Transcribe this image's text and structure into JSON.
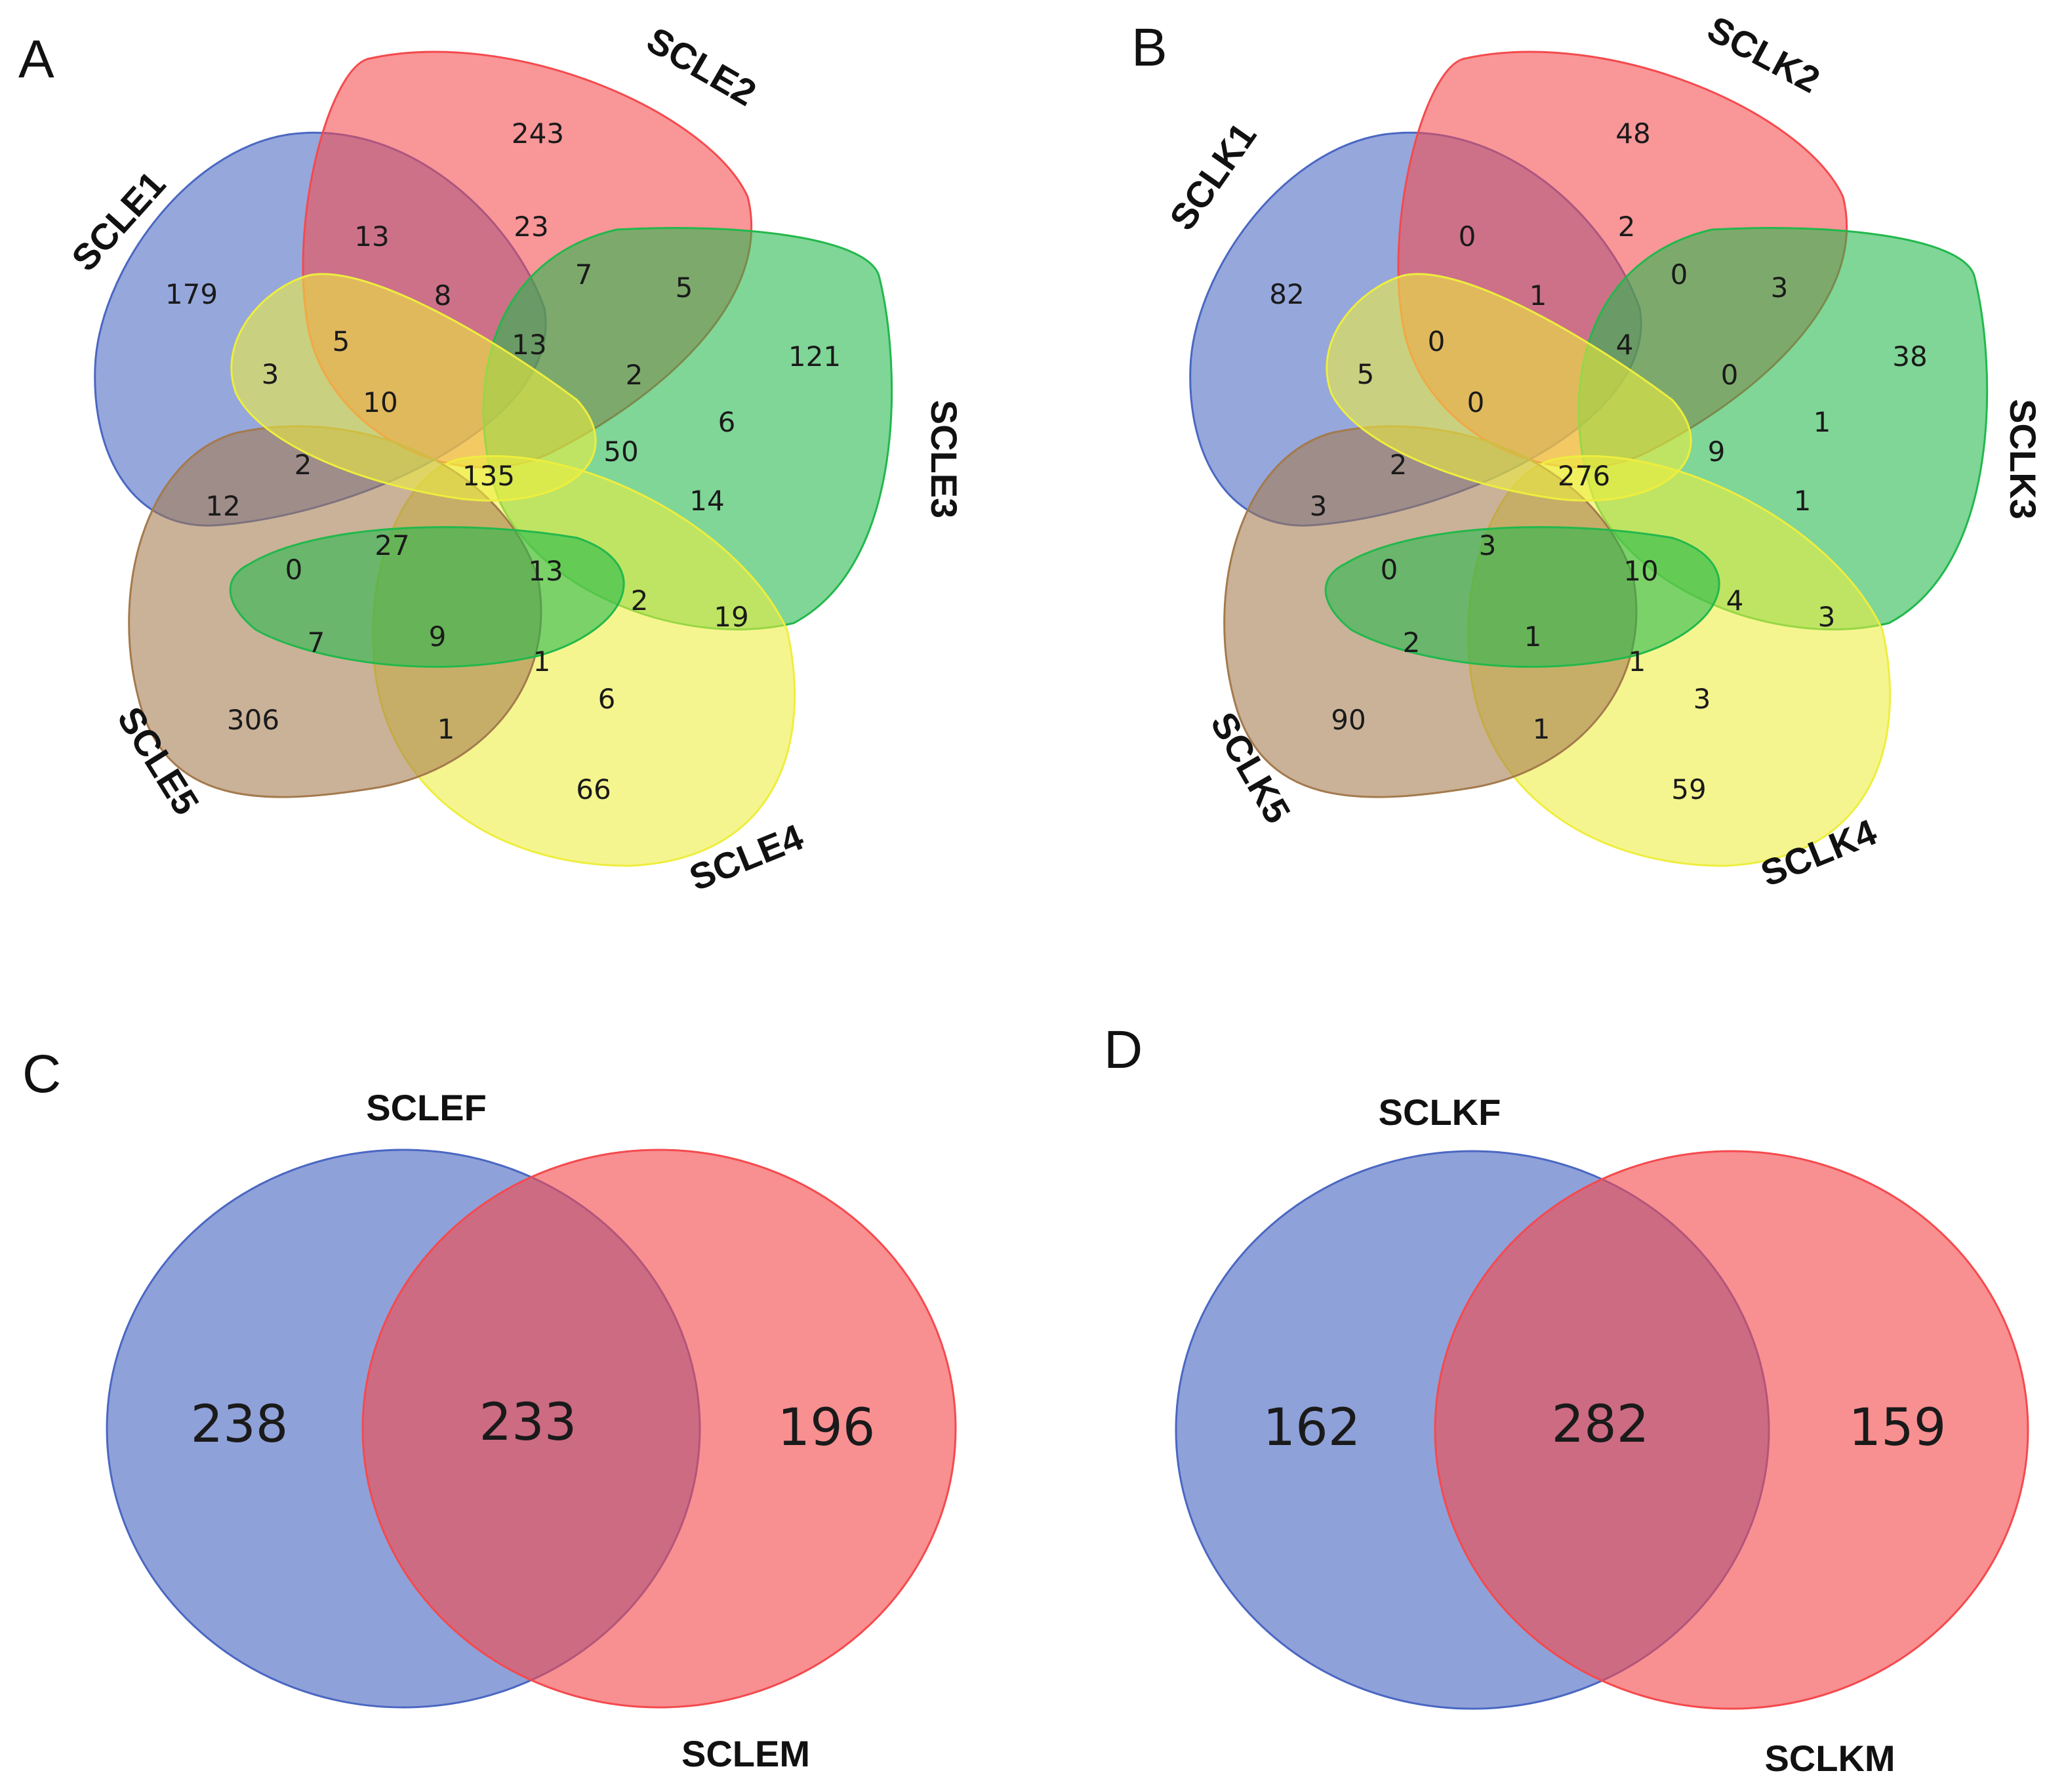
{
  "panels": {
    "A": {
      "letter": "A",
      "sets": [
        {
          "name": "SCLE1",
          "color": "#4a67c2"
        },
        {
          "name": "SCLE2",
          "color": "#f44a4d"
        },
        {
          "name": "SCLE3",
          "color": "#22b84c"
        },
        {
          "name": "SCLE4",
          "color": "#eeee3e"
        },
        {
          "name": "SCLE5",
          "color": "#a47a4d"
        }
      ],
      "counts": [
        "179",
        "243",
        "121",
        "66",
        "306",
        "13",
        "23",
        "8",
        "7",
        "5",
        "3",
        "5",
        "10",
        "13",
        "2",
        "6",
        "2",
        "135",
        "50",
        "14",
        "12",
        "27",
        "13",
        "2",
        "19",
        "0",
        "9",
        "1",
        "6",
        "7",
        "1"
      ]
    },
    "B": {
      "letter": "B",
      "sets": [
        {
          "name": "SCLK1",
          "color": "#4a67c2"
        },
        {
          "name": "SCLK2",
          "color": "#f44a4d"
        },
        {
          "name": "SCLK3",
          "color": "#22b84c"
        },
        {
          "name": "SCLK4",
          "color": "#eeee3e"
        },
        {
          "name": "SCLK5",
          "color": "#a47a4d"
        }
      ],
      "counts": [
        "82",
        "48",
        "38",
        "59",
        "90",
        "0",
        "2",
        "1",
        "0",
        "3",
        "5",
        "0",
        "0",
        "4",
        "0",
        "1",
        "2",
        "276",
        "9",
        "1",
        "3",
        "3",
        "10",
        "4",
        "3",
        "0",
        "1",
        "1",
        "3",
        "2",
        "1"
      ]
    },
    "C": {
      "letter": "C",
      "left_label": "SCLEF",
      "right_label": "SCLEM",
      "left_only": "238",
      "both": "233",
      "right_only": "196",
      "left_color": "#4a67c2",
      "right_color": "#f44a4d"
    },
    "D": {
      "letter": "D",
      "left_label": "SCLKF",
      "right_label": "SCLKM",
      "left_only": "162",
      "both": "282",
      "right_only": "159",
      "left_color": "#4a67c2",
      "right_color": "#f44a4d"
    }
  }
}
